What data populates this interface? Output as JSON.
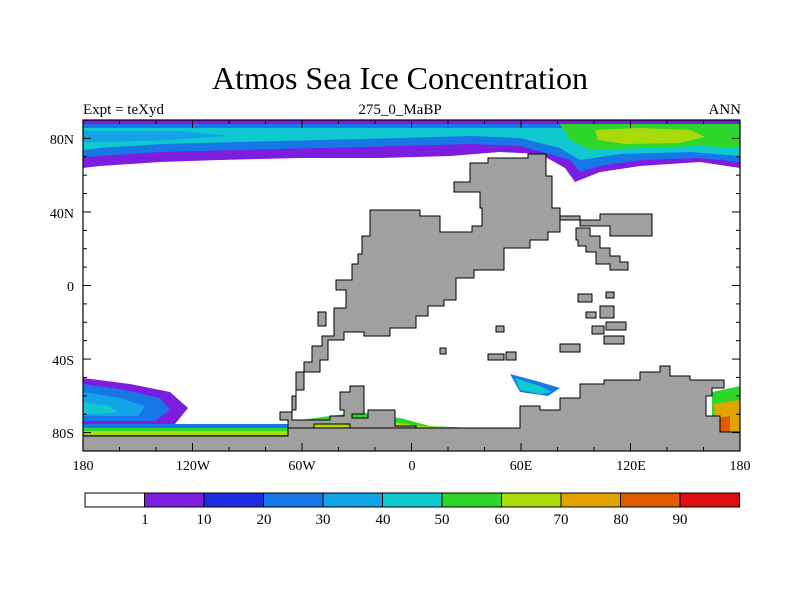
{
  "title": "Atmos Sea Ice Concentration",
  "left_string": "Expt = teXyd",
  "center_string": "275_0_MaBP",
  "right_string": "ANN",
  "map": {
    "lon_ticks": [
      "180",
      "120W",
      "60W",
      "0",
      "60E",
      "120E",
      "180"
    ],
    "lat_ticks": [
      "80N",
      "40N",
      "0",
      "40S",
      "80S"
    ],
    "land_color": "#a0a0a0",
    "ocean_color": "#ffffff"
  },
  "colorbar": {
    "labels": [
      "1",
      "10",
      "20",
      "30",
      "40",
      "50",
      "60",
      "70",
      "80",
      "90"
    ],
    "colors": [
      "#ffffff",
      "#7d1de0",
      "#1b2fe0",
      "#1877e6",
      "#12a4e6",
      "#10c8d0",
      "#2fd62a",
      "#a7db0c",
      "#e0a300",
      "#e05a00",
      "#e00f0f"
    ]
  }
}
